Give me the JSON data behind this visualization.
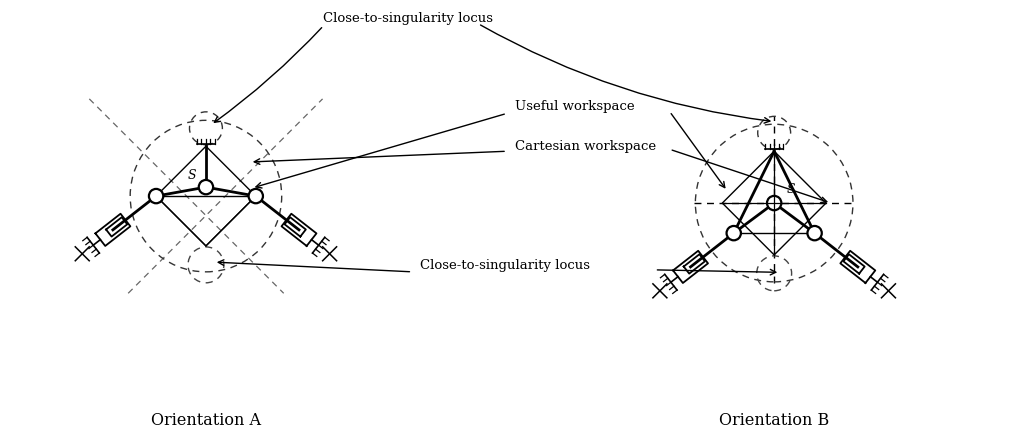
{
  "fig_width": 10.15,
  "fig_height": 4.48,
  "dpi": 100,
  "bg_color": "#ffffff",
  "line_color": "#000000",
  "orientation_A_label": "Orientation A",
  "orientation_B_label": "Orientation B",
  "top_label": "Close-to-singularity locus",
  "label_useful": "Useful workspace",
  "label_cartesian": "Cartesian workspace",
  "label_close_mid": "Close-to-singularity locus",
  "label_S": "S",
  "lw_thick": 2.0,
  "lw_thin": 1.0,
  "lw_dashed": 1.0
}
